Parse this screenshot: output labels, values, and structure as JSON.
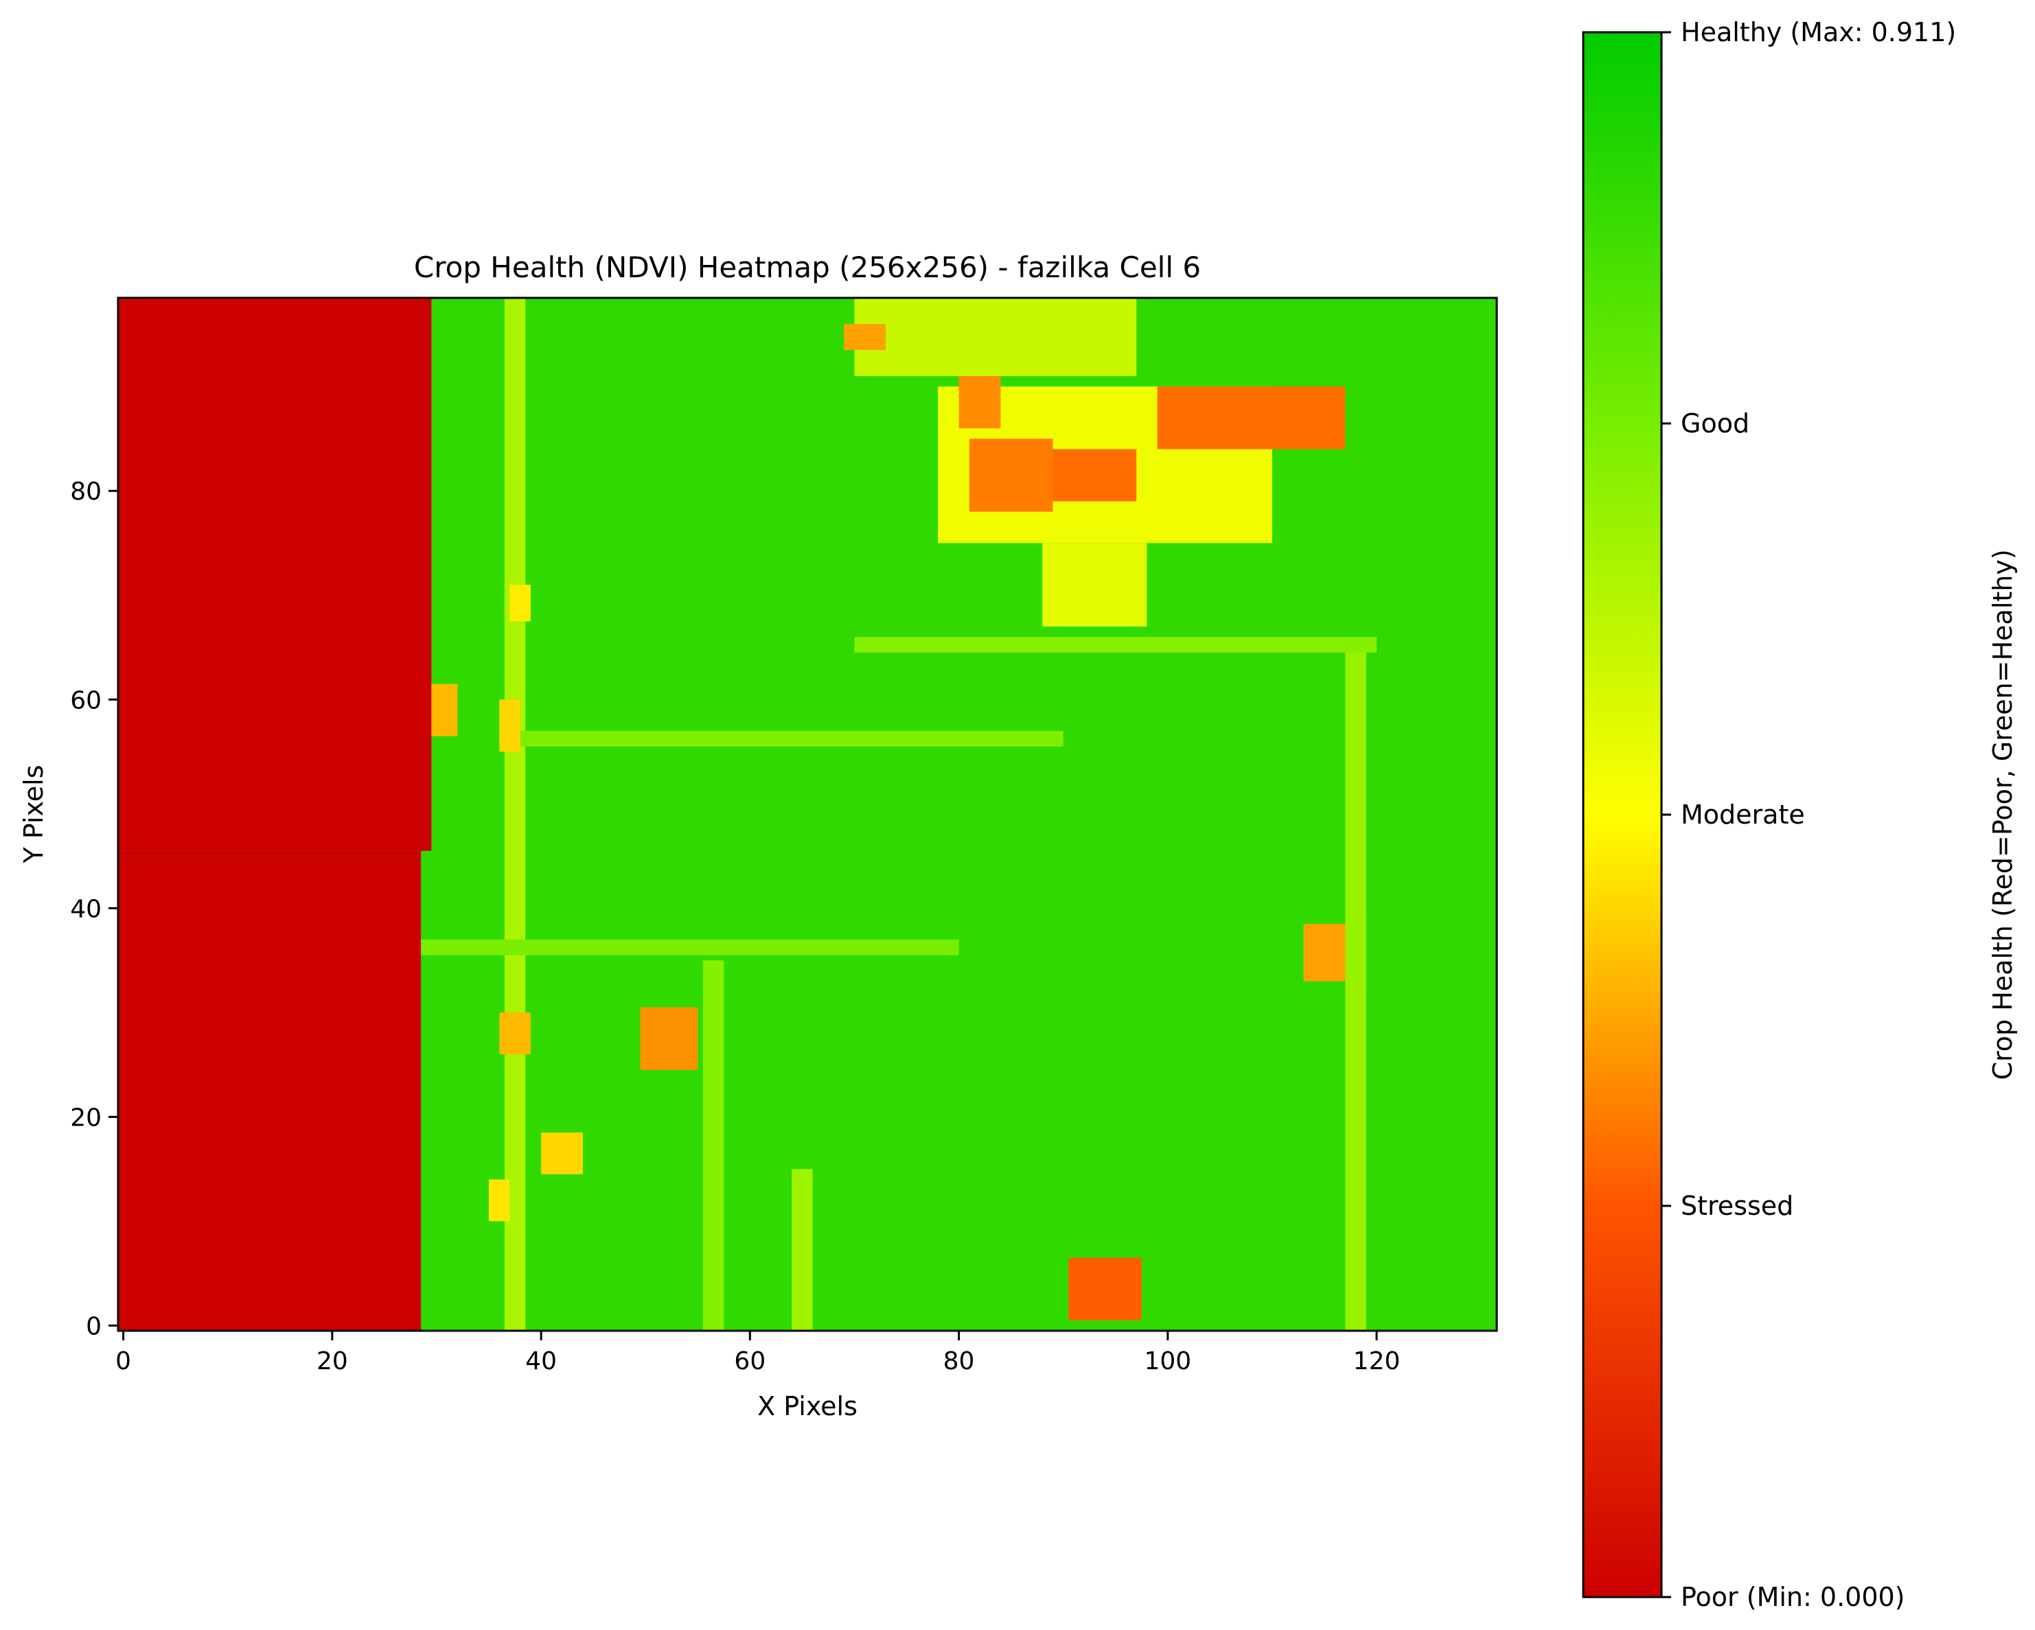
{
  "chart_data": {
    "type": "heatmap",
    "title": "Crop Health (NDVI) Heatmap (256x256) - fazilka Cell 6",
    "xlabel": "X Pixels",
    "ylabel": "Y Pixels",
    "xlim": [
      -0.5,
      131.5
    ],
    "ylim": [
      -0.5,
      98.5
    ],
    "x_ticks": [
      0,
      20,
      40,
      60,
      80,
      100,
      120
    ],
    "y_ticks": [
      0,
      20,
      40,
      60,
      80
    ],
    "grid": false,
    "value_range": [
      0.0,
      0.911
    ],
    "colormap": {
      "colors": [
        "#cc0000",
        "#ff5500",
        "#ffff00",
        "#77ee00",
        "#00cc00"
      ],
      "stops": [
        0,
        0.25,
        0.5,
        0.75,
        1
      ]
    },
    "colorbar": {
      "label": "Crop Health (Red=Poor, Green=Healthy)",
      "ticks": [
        {
          "value": 0.911,
          "label": "Healthy (Max: 0.911)"
        },
        {
          "value": 0.68325,
          "label": "Good"
        },
        {
          "value": 0.4555,
          "label": "Moderate"
        },
        {
          "value": 0.22775,
          "label": "Stressed"
        },
        {
          "value": 0.0,
          "label": "Poor (Min: 0.000)"
        }
      ]
    },
    "background_value": 0.82,
    "regions": [
      {
        "name": "no-data zone (top part)",
        "x": [
          -0.5,
          29.5
        ],
        "y": [
          45.5,
          98.5
        ],
        "value": 0.0
      },
      {
        "name": "no-data zone (bottom part)",
        "x": [
          -0.5,
          28.5
        ],
        "y": [
          -0.5,
          45.5
        ],
        "value": 0.0
      },
      {
        "name": "vertical road x37",
        "x": [
          36.5,
          38.5
        ],
        "y": [
          -0.5,
          98.5
        ],
        "value": 0.6
      },
      {
        "name": "vertical road x65",
        "x": [
          64,
          66
        ],
        "y": [
          -0.5,
          15
        ],
        "value": 0.62
      },
      {
        "name": "vertical road x56",
        "x": [
          55.5,
          57.5
        ],
        "y": [
          -0.5,
          35
        ],
        "value": 0.66
      },
      {
        "name": "vertical road x118",
        "x": [
          117,
          119
        ],
        "y": [
          -0.5,
          65
        ],
        "value": 0.63
      },
      {
        "name": "horizontal road y56",
        "x": [
          38,
          90
        ],
        "y": [
          55.5,
          57
        ],
        "value": 0.67
      },
      {
        "name": "horizontal road y65",
        "x": [
          70,
          120
        ],
        "y": [
          64.5,
          66
        ],
        "value": 0.66
      },
      {
        "name": "horizontal road y36",
        "x": [
          28.5,
          80
        ],
        "y": [
          35.5,
          37
        ],
        "value": 0.68
      },
      {
        "name": "triangle field upper band",
        "x": [
          70,
          97
        ],
        "y": [
          91,
          98.5
        ],
        "value": 0.55
      },
      {
        "name": "triangle field middle",
        "x": [
          78,
          110
        ],
        "y": [
          75,
          90
        ],
        "value": 0.48
      },
      {
        "name": "triangle field tip",
        "x": [
          88,
          98
        ],
        "y": [
          67,
          75
        ],
        "value": 0.5
      },
      {
        "name": "stressed patch A",
        "x": [
          80,
          84
        ],
        "y": [
          86,
          91
        ],
        "value": 0.3
      },
      {
        "name": "stressed patch B",
        "x": [
          81,
          89
        ],
        "y": [
          78,
          85
        ],
        "value": 0.28
      },
      {
        "name": "stressed patch C",
        "x": [
          89,
          97
        ],
        "y": [
          79,
          84
        ],
        "value": 0.26
      },
      {
        "name": "stressed patch D",
        "x": [
          99,
          117
        ],
        "y": [
          84,
          90
        ],
        "value": 0.26
      },
      {
        "name": "stressed patch E",
        "x": [
          69,
          73
        ],
        "y": [
          93.5,
          96
        ],
        "value": 0.33
      },
      {
        "name": "small patch at (31,59)",
        "x": [
          29.5,
          32
        ],
        "y": [
          56.5,
          61.5
        ],
        "value": 0.36
      },
      {
        "name": "small patch at (37,57)",
        "x": [
          36,
          38
        ],
        "y": [
          55,
          60
        ],
        "value": 0.4
      },
      {
        "name": "small patch at (38,69)",
        "x": [
          37,
          39
        ],
        "y": [
          67.5,
          71
        ],
        "value": 0.43
      },
      {
        "name": "small patch at (37,28)",
        "x": [
          36,
          39
        ],
        "y": [
          26,
          30
        ],
        "value": 0.36
      },
      {
        "name": "patch at (52,28)",
        "x": [
          49.5,
          55
        ],
        "y": [
          24.5,
          30.5
        ],
        "value": 0.31
      },
      {
        "name": "patch at (42,17)",
        "x": [
          40,
          44
        ],
        "y": [
          14.5,
          18.5
        ],
        "value": 0.4
      },
      {
        "name": "patch at (115,36)",
        "x": [
          113,
          117
        ],
        "y": [
          33,
          38.5
        ],
        "value": 0.33
      },
      {
        "name": "patch at (94,3)",
        "x": [
          90.5,
          97.5
        ],
        "y": [
          0.5,
          6.5
        ],
        "value": 0.24
      },
      {
        "name": "small patch at (36,12)",
        "x": [
          35,
          37
        ],
        "y": [
          10,
          14
        ],
        "value": 0.42
      }
    ]
  }
}
